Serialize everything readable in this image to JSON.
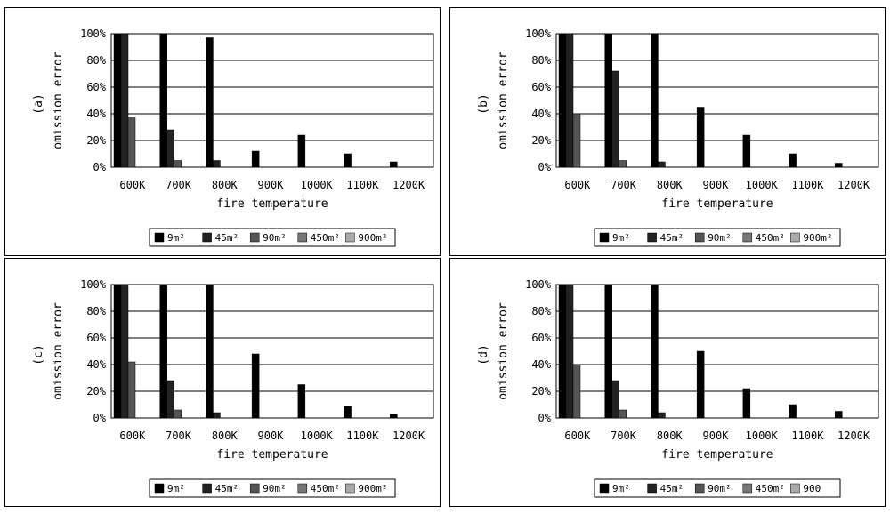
{
  "chart_data": [
    {
      "type": "bar",
      "panel_label": "(a)",
      "xlabel": "fire temperature",
      "ylabel": "omission error",
      "categories": [
        "600K",
        "700K",
        "800K",
        "900K",
        "1000K",
        "1100K",
        "1200K"
      ],
      "y_ticks": [
        "0%",
        "20%",
        "40%",
        "60%",
        "80%",
        "100%"
      ],
      "ylim": [
        0,
        100
      ],
      "grid": true,
      "legend_position": "bottom",
      "series": [
        {
          "name": "9m²",
          "color": "#000000",
          "values": [
            100,
            100,
            97,
            12,
            24,
            10,
            4
          ]
        },
        {
          "name": "45m²",
          "color": "#222222",
          "values": [
            100,
            28,
            5,
            0,
            0,
            0,
            0
          ]
        },
        {
          "name": "90m²",
          "color": "#555555",
          "values": [
            37,
            5,
            0,
            0,
            0,
            0,
            0
          ]
        },
        {
          "name": "450m²",
          "color": "#777777",
          "values": [
            0,
            0,
            0,
            0,
            0,
            0,
            0
          ]
        },
        {
          "name": "900m²",
          "color": "#aaaaaa",
          "values": [
            0,
            0,
            0,
            0,
            0,
            0,
            0
          ]
        }
      ]
    },
    {
      "type": "bar",
      "panel_label": "(b)",
      "xlabel": "fire temperature",
      "ylabel": "omission error",
      "categories": [
        "600K",
        "700K",
        "800K",
        "900K",
        "1000K",
        "1100K",
        "1200K"
      ],
      "y_ticks": [
        "0%",
        "20%",
        "40%",
        "60%",
        "80%",
        "100%"
      ],
      "ylim": [
        0,
        100
      ],
      "grid": true,
      "legend_position": "bottom",
      "series": [
        {
          "name": "9m²",
          "color": "#000000",
          "values": [
            100,
            100,
            100,
            45,
            24,
            10,
            3
          ]
        },
        {
          "name": "45m²",
          "color": "#222222",
          "values": [
            100,
            72,
            4,
            0,
            0,
            0,
            0
          ]
        },
        {
          "name": "90m²",
          "color": "#555555",
          "values": [
            40,
            5,
            0,
            0,
            0,
            0,
            0
          ]
        },
        {
          "name": "450m²",
          "color": "#777777",
          "values": [
            0,
            0,
            0,
            0,
            0,
            0,
            0
          ]
        },
        {
          "name": "900m²",
          "color": "#aaaaaa",
          "values": [
            0,
            0,
            0,
            0,
            0,
            0,
            0
          ]
        }
      ]
    },
    {
      "type": "bar",
      "panel_label": "(c)",
      "xlabel": "fire temperature",
      "ylabel": "omission error",
      "categories": [
        "600K",
        "700K",
        "800K",
        "900K",
        "1000K",
        "1100K",
        "1200K"
      ],
      "y_ticks": [
        "0%",
        "20%",
        "40%",
        "60%",
        "80%",
        "100%"
      ],
      "ylim": [
        0,
        100
      ],
      "grid": true,
      "legend_position": "bottom",
      "series": [
        {
          "name": "9m²",
          "color": "#000000",
          "values": [
            100,
            100,
            100,
            48,
            25,
            9,
            3
          ]
        },
        {
          "name": "45m²",
          "color": "#222222",
          "values": [
            100,
            28,
            4,
            0,
            0,
            0,
            0
          ]
        },
        {
          "name": "90m²",
          "color": "#555555",
          "values": [
            42,
            6,
            0,
            0,
            0,
            0,
            0
          ]
        },
        {
          "name": "450m²",
          "color": "#777777",
          "values": [
            0,
            0,
            0,
            0,
            0,
            0,
            0
          ]
        },
        {
          "name": "900m²",
          "color": "#aaaaaa",
          "values": [
            0,
            0,
            0,
            0,
            0,
            0,
            0
          ]
        }
      ]
    },
    {
      "type": "bar",
      "panel_label": "(d)",
      "xlabel": "fire temperature",
      "ylabel": "omission error",
      "categories": [
        "600K",
        "700K",
        "800K",
        "900K",
        "1000K",
        "1100K",
        "1200K"
      ],
      "y_ticks": [
        "0%",
        "20%",
        "40%",
        "60%",
        "80%",
        "100%"
      ],
      "ylim": [
        0,
        100
      ],
      "grid": true,
      "legend_position": "bottom",
      "series": [
        {
          "name": "9m²",
          "color": "#000000",
          "values": [
            100,
            100,
            100,
            50,
            22,
            10,
            5
          ]
        },
        {
          "name": "45m²",
          "color": "#222222",
          "values": [
            100,
            28,
            4,
            0,
            0,
            0,
            0
          ]
        },
        {
          "name": "90m²",
          "color": "#555555",
          "values": [
            40,
            6,
            0,
            0,
            0,
            0,
            0
          ]
        },
        {
          "name": "450m²",
          "color": "#777777",
          "values": [
            0,
            0,
            0,
            0,
            0,
            0,
            0
          ]
        },
        {
          "name": "900",
          "color": "#aaaaaa",
          "values": [
            0,
            0,
            0,
            0,
            0,
            0,
            0
          ]
        }
      ]
    }
  ]
}
